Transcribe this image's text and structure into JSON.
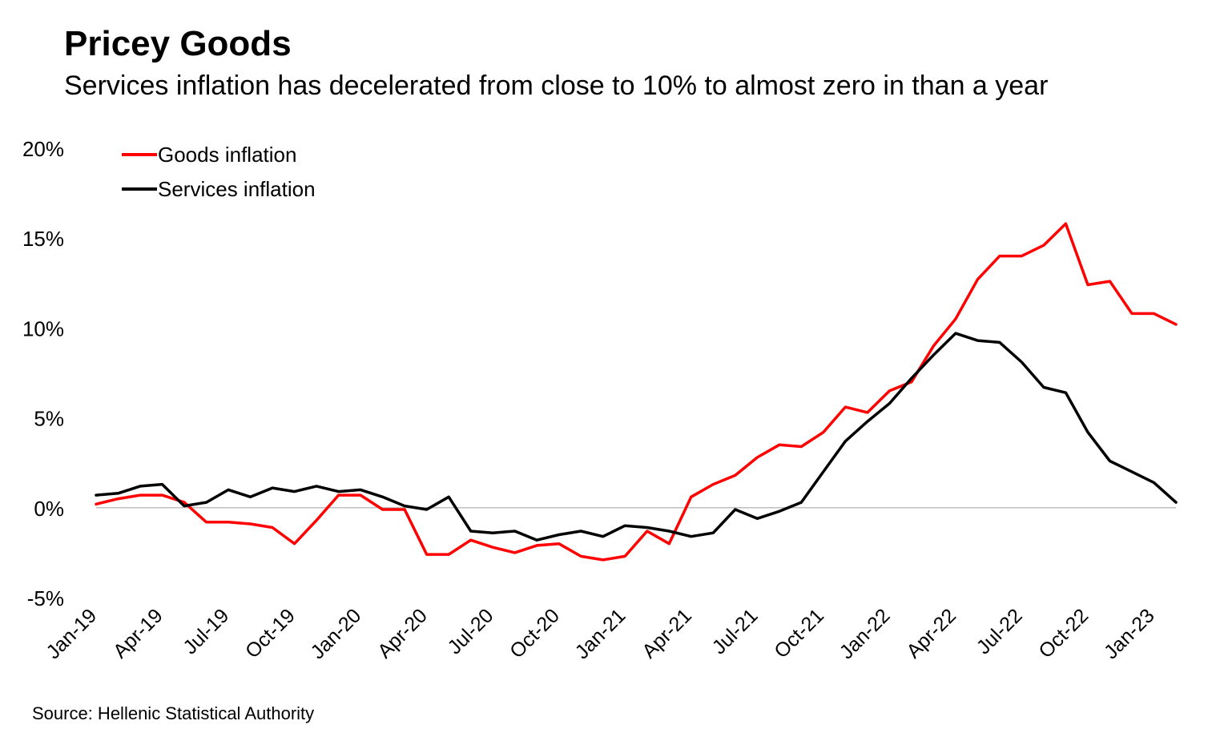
{
  "title": "Pricey Goods",
  "subtitle": "Services inflation has decelerated from close to 10% to almost zero in than a year",
  "source": "Source: Hellenic Statistical Authority",
  "colors": {
    "goods": "#ff0000",
    "services": "#000000",
    "zero_line": "#bfbfbf"
  },
  "chart_data": {
    "type": "line",
    "ylim": [
      -5,
      20
    ],
    "yticks": [
      "-5%",
      "0%",
      "5%",
      "10%",
      "15%",
      "20%"
    ],
    "ytick_values": [
      -5,
      0,
      5,
      10,
      15,
      20
    ],
    "xtick_labels": [
      "Jan-19",
      "Apr-19",
      "Jul-19",
      "Oct-19",
      "Jan-20",
      "Apr-20",
      "Jul-20",
      "Oct-20",
      "Jan-21",
      "Apr-21",
      "Jul-21",
      "Oct-21",
      "Jan-22",
      "Apr-22",
      "Jul-22",
      "Oct-22",
      "Jan-23"
    ],
    "legend_position": "top-left",
    "x": [
      "Jan-19",
      "Feb-19",
      "Mar-19",
      "Apr-19",
      "May-19",
      "Jun-19",
      "Jul-19",
      "Aug-19",
      "Sep-19",
      "Oct-19",
      "Nov-19",
      "Dec-19",
      "Jan-20",
      "Feb-20",
      "Mar-20",
      "Apr-20",
      "May-20",
      "Jun-20",
      "Jul-20",
      "Aug-20",
      "Sep-20",
      "Oct-20",
      "Nov-20",
      "Dec-20",
      "Jan-21",
      "Feb-21",
      "Mar-21",
      "Apr-21",
      "May-21",
      "Jun-21",
      "Jul-21",
      "Aug-21",
      "Sep-21",
      "Oct-21",
      "Nov-21",
      "Dec-21",
      "Jan-22",
      "Feb-22",
      "Mar-22",
      "Apr-22",
      "May-22",
      "Jun-22",
      "Jul-22",
      "Aug-22",
      "Sep-22",
      "Oct-22",
      "Nov-22",
      "Dec-22",
      "Jan-23",
      "Feb-23"
    ],
    "series": [
      {
        "name": "Goods inflation",
        "values": [
          0.2,
          0.5,
          0.7,
          0.7,
          0.3,
          -0.8,
          -0.8,
          -0.9,
          -1.1,
          -2.0,
          -0.7,
          0.7,
          0.7,
          -0.1,
          -0.1,
          -2.6,
          -2.6,
          -1.8,
          -2.2,
          -2.5,
          -2.1,
          -2.0,
          -2.7,
          -2.9,
          -2.7,
          -1.3,
          -2.0,
          0.6,
          1.3,
          1.8,
          2.8,
          3.5,
          3.4,
          4.2,
          5.6,
          5.3,
          6.5,
          7.0,
          9.0,
          10.5,
          12.7,
          14.0,
          14.0,
          14.6,
          15.8,
          12.4,
          12.6,
          10.8,
          10.8,
          10.2
        ]
      },
      {
        "name": "Services inflation",
        "values": [
          0.7,
          0.8,
          1.2,
          1.3,
          0.1,
          0.3,
          1.0,
          0.6,
          1.1,
          0.9,
          1.2,
          0.9,
          1.0,
          0.6,
          0.1,
          -0.1,
          0.6,
          -1.3,
          -1.4,
          -1.3,
          -1.8,
          -1.5,
          -1.3,
          -1.6,
          -1.0,
          -1.1,
          -1.3,
          -1.6,
          -1.4,
          -0.1,
          -0.6,
          -0.2,
          0.3,
          2.0,
          3.7,
          4.8,
          5.8,
          7.2,
          8.5,
          9.7,
          9.3,
          9.2,
          8.1,
          6.7,
          6.4,
          4.2,
          2.6,
          2.0,
          1.4,
          0.3
        ]
      }
    ]
  }
}
